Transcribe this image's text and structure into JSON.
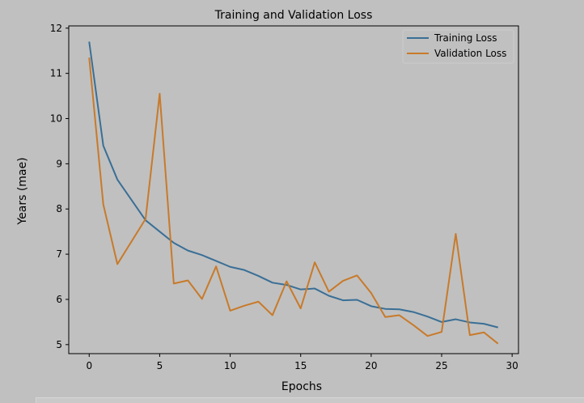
{
  "colors": {
    "background": "#c0c0c0",
    "training": "#3a6f96",
    "validation": "#c87a2a",
    "axis": "#000000"
  },
  "chart_data": {
    "type": "line",
    "title": "Training and Validation Loss",
    "xlabel": "Epochs",
    "ylabel": "Years (mae)",
    "xlim": [
      -1.45,
      30.45
    ],
    "ylim": [
      4.8,
      12.05
    ],
    "xticks": [
      0,
      5,
      10,
      15,
      20,
      25,
      30
    ],
    "yticks": [
      5,
      6,
      7,
      8,
      9,
      10,
      11,
      12
    ],
    "x": [
      0,
      1,
      2,
      3,
      4,
      5,
      6,
      7,
      8,
      9,
      10,
      11,
      12,
      13,
      14,
      15,
      16,
      17,
      18,
      19,
      20,
      21,
      22,
      23,
      24,
      25,
      26,
      27,
      28,
      29
    ],
    "series": [
      {
        "name": "Training Loss",
        "color": "#3a6f96",
        "values": [
          11.7,
          9.4,
          8.65,
          8.2,
          7.75,
          7.5,
          7.25,
          7.08,
          6.98,
          6.85,
          6.72,
          6.65,
          6.52,
          6.37,
          6.32,
          6.22,
          6.24,
          6.08,
          5.98,
          5.99,
          5.85,
          5.79,
          5.78,
          5.72,
          5.62,
          5.5,
          5.56,
          5.49,
          5.46,
          5.38
        ]
      },
      {
        "name": "Validation Loss",
        "color": "#c87a2a",
        "values": [
          11.35,
          8.1,
          6.78,
          7.28,
          7.78,
          10.55,
          6.35,
          6.42,
          6.01,
          6.73,
          5.75,
          5.86,
          5.95,
          5.65,
          6.4,
          5.8,
          6.82,
          6.17,
          6.41,
          6.53,
          6.14,
          5.61,
          5.65,
          5.43,
          5.19,
          5.28,
          7.45,
          5.21,
          5.27,
          5.02
        ]
      }
    ],
    "legend": "top-right",
    "grid": false
  }
}
